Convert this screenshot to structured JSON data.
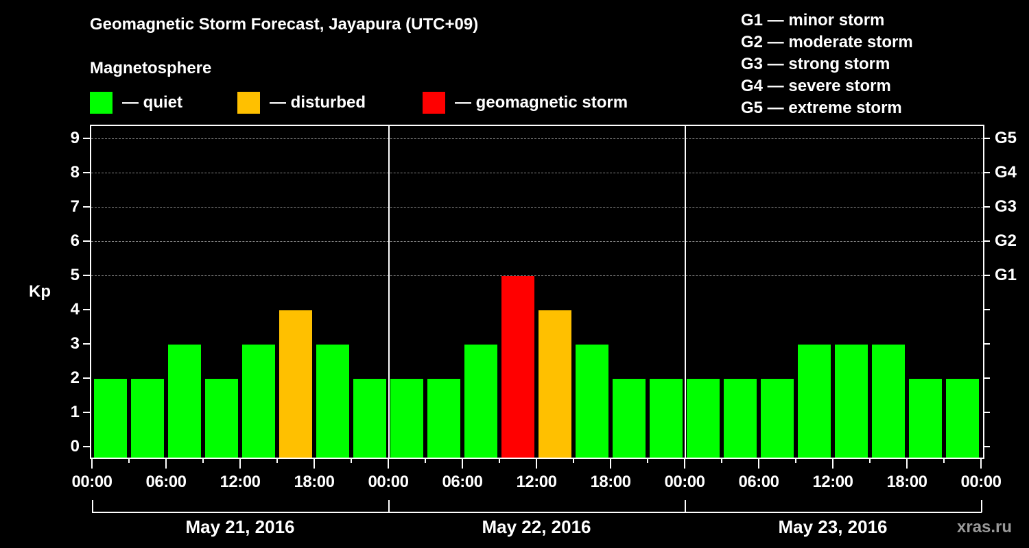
{
  "header": {
    "title": "Geomagnetic Storm Forecast, Jayapura (UTC+09)",
    "subtitle": "Magnetosphere"
  },
  "legend": {
    "items": [
      {
        "label": "— quiet",
        "color": "#00ff00"
      },
      {
        "label": "— disturbed",
        "color": "#ffc000"
      },
      {
        "label": "— geomagnetic storm",
        "color": "#ff0000"
      }
    ]
  },
  "g_legend": [
    "G1 — minor storm",
    "G2 — moderate storm",
    "G3 — strong storm",
    "G4 — severe storm",
    "G5 — extreme storm"
  ],
  "axes": {
    "ylabel": "Kp",
    "yticks": [
      "0",
      "1",
      "2",
      "3",
      "4",
      "5",
      "6",
      "7",
      "8",
      "9"
    ],
    "right_ticks": [
      "G1",
      "G2",
      "G3",
      "G4",
      "G5"
    ],
    "xticks": [
      "00:00",
      "06:00",
      "12:00",
      "18:00",
      "00:00",
      "06:00",
      "12:00",
      "18:00",
      "00:00",
      "06:00",
      "12:00",
      "18:00",
      "00:00"
    ],
    "days": [
      "May 21, 2016",
      "May 22, 2016",
      "May 23, 2016"
    ]
  },
  "brand": "xras.ru",
  "colors": {
    "quiet": "#00ff00",
    "disturbed": "#ffc000",
    "storm": "#ff0000",
    "background": "#000000"
  },
  "chart_data": {
    "type": "bar",
    "title": "Geomagnetic Storm Forecast, Jayapura (UTC+09)",
    "xlabel": "",
    "ylabel": "Kp",
    "ylim": [
      0,
      9
    ],
    "grid": "dashed horizontal at Kp 5-9",
    "legend_position": "top",
    "categories": [
      "May 21 00:00",
      "May 21 03:00",
      "May 21 06:00",
      "May 21 09:00",
      "May 21 12:00",
      "May 21 15:00",
      "May 21 18:00",
      "May 21 21:00",
      "May 22 00:00",
      "May 22 03:00",
      "May 22 06:00",
      "May 22 09:00",
      "May 22 12:00",
      "May 22 15:00",
      "May 22 18:00",
      "May 22 21:00",
      "May 23 00:00",
      "May 23 03:00",
      "May 23 06:00",
      "May 23 09:00",
      "May 23 12:00",
      "May 23 15:00",
      "May 23 18:00",
      "May 23 21:00"
    ],
    "values": [
      2,
      2,
      3,
      2,
      3,
      4,
      3,
      2,
      2,
      2,
      3,
      5,
      4,
      3,
      2,
      2,
      2,
      2,
      2,
      3,
      3,
      3,
      2,
      2
    ],
    "status": [
      "quiet",
      "quiet",
      "quiet",
      "quiet",
      "quiet",
      "disturbed",
      "quiet",
      "quiet",
      "quiet",
      "quiet",
      "quiet",
      "storm",
      "disturbed",
      "quiet",
      "quiet",
      "quiet",
      "quiet",
      "quiet",
      "quiet",
      "quiet",
      "quiet",
      "quiet",
      "quiet",
      "quiet"
    ],
    "right_axis": {
      "G1": 5,
      "G2": 6,
      "G3": 7,
      "G4": 8,
      "G5": 9
    }
  }
}
